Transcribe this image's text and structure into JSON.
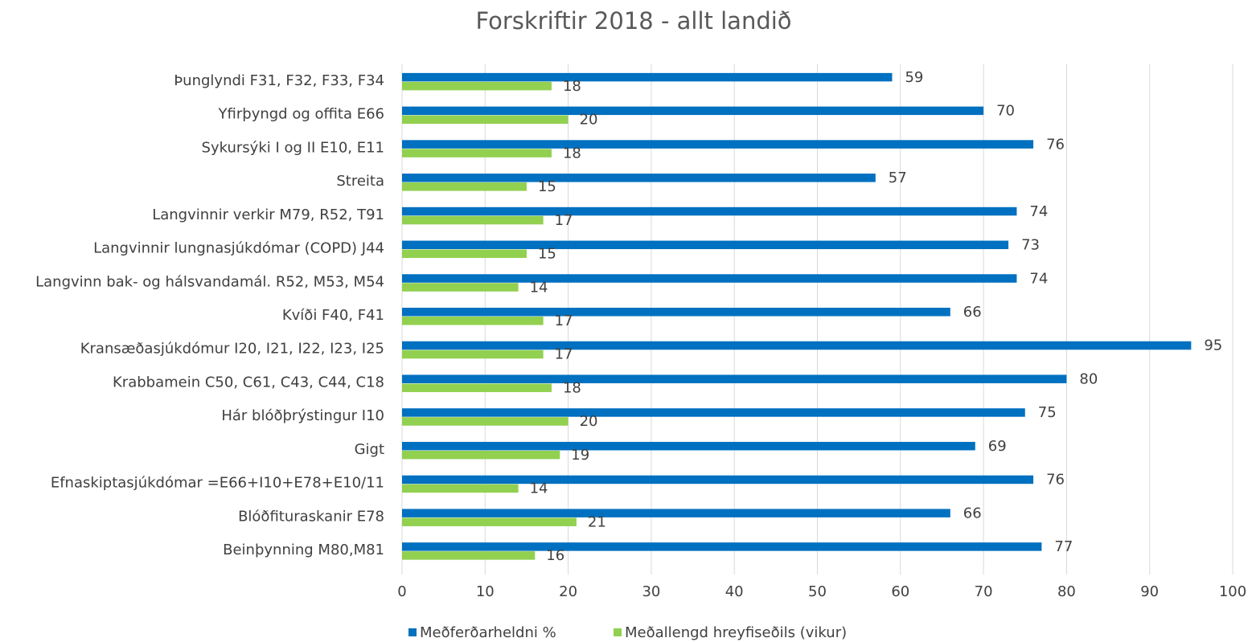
{
  "chart_data": {
    "type": "bar",
    "orientation": "horizontal",
    "title": "Forskriftir 2018 - allt landið",
    "categories": [
      "Þunglyndi F31, F32, F33, F34",
      "Yfirþyngd og offita E66",
      "Sykursýki I og II E10, E11",
      "Streita",
      "Langvinnir verkir M79, R52, T91",
      "Langvinnir lungnasjúkdómar (COPD) J44",
      "Langvinn bak- og hálsvandamál. R52, M53, M54",
      "Kvíði F40, F41",
      "Kransæðasjúkdómur I20, I21, I22, I23, I25",
      "Krabbamein C50, C61, C43, C44, C18",
      "Hár blóðþrýstingur I10",
      "Gigt",
      "Efnaskiptasjúkdómar =E66+I10+E78+E10/11",
      "Blóðfituraskanir E78",
      "Beinþynning M80,M81"
    ],
    "series": [
      {
        "name": "Meðferðarheldni %",
        "color": "#0070c0",
        "values": [
          59,
          70,
          76,
          57,
          74,
          73,
          74,
          66,
          95,
          80,
          75,
          69,
          76,
          66,
          77
        ]
      },
      {
        "name": "Meðallengd hreyfiseðils (vikur)",
        "color": "#92d050",
        "values": [
          18,
          20,
          18,
          15,
          17,
          15,
          14,
          17,
          17,
          18,
          20,
          19,
          14,
          21,
          16
        ]
      }
    ],
    "xlim": [
      0,
      100
    ],
    "xticks": [
      0,
      10,
      20,
      30,
      40,
      50,
      60,
      70,
      80,
      90,
      100
    ],
    "grid": true,
    "legend": "bottom"
  }
}
